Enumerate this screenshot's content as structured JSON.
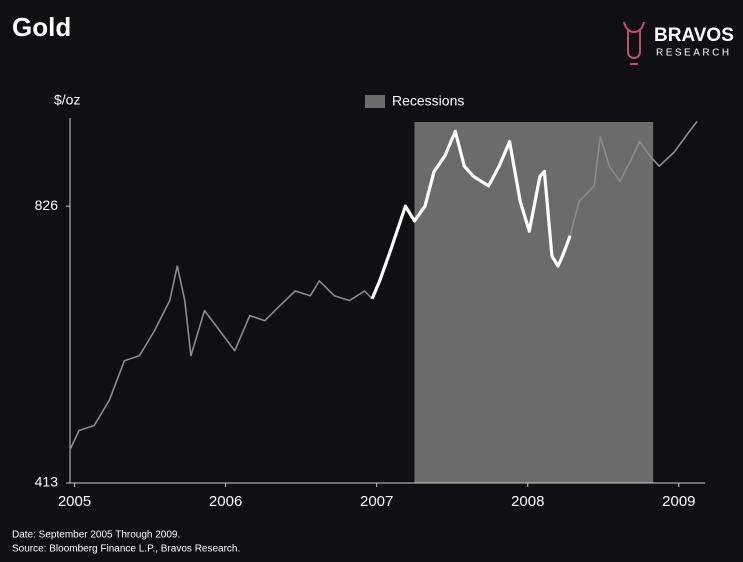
{
  "chart_data": {
    "type": "line",
    "title": "Gold",
    "brand": "BRAVOS",
    "brand_subtitle": "RESEARCH",
    "y_label": "$/oz",
    "footnotes": [
      "Date: September 2005 Through 2009.",
      "Source: Bloomberg Finance L.P., Bravos Research."
    ],
    "log_scale_y": true,
    "xlim": [
      2004.97,
      2009.14
    ],
    "xticks": [
      2005,
      2006,
      2007,
      2008,
      2009
    ],
    "ylim": [
      413,
      1030
    ],
    "yticks": [
      413,
      826
    ],
    "shaded_regions": [
      {
        "label": "Recessions",
        "start": 2007.25,
        "end": 2008.83,
        "color": "#6b6b6b"
      }
    ],
    "x": [
      2004.97,
      2005.03,
      2005.13,
      2005.23,
      2005.33,
      2005.43,
      2005.53,
      2005.63,
      2005.68,
      2005.73,
      2005.77,
      2005.86,
      2005.96,
      2006.06,
      2006.16,
      2006.26,
      2006.36,
      2006.46,
      2006.56,
      2006.62,
      2006.72,
      2006.82,
      2006.92,
      2006.97,
      2007.02,
      2007.09,
      2007.19,
      2007.25,
      2007.32,
      2007.38,
      2007.45,
      2007.52,
      2007.58,
      2007.64,
      2007.74,
      2007.81,
      2007.88,
      2007.95,
      2008.01,
      2008.08,
      2008.11,
      2008.16,
      2008.2,
      2008.23,
      2008.28,
      2008.34,
      2008.44,
      2008.48,
      2008.54,
      2008.61,
      2008.68,
      2008.74,
      2008.81,
      2008.87,
      2008.97,
      2009.07,
      2009.12
    ],
    "series": [
      {
        "color": "#8c8c8c",
        "width": 1.6,
        "values": [
          449,
          471,
          477,
          508,
          561,
          568,
          605,
          652,
          711,
          652,
          568,
          636,
          605,
          575,
          628,
          620,
          644,
          668,
          660,
          685,
          660,
          652,
          668,
          655,
          null,
          null,
          null,
          null,
          null,
          null,
          null,
          null,
          null,
          null,
          null,
          null,
          null,
          null,
          null,
          null,
          null,
          null,
          null,
          null,
          767,
          836,
          869,
          983,
          913,
          879,
          925,
          971,
          936,
          913,
          946,
          996,
          1021
        ]
      },
      {
        "color": "#ffffff",
        "width": 3.2,
        "values": [
          null,
          null,
          null,
          null,
          null,
          null,
          null,
          null,
          null,
          null,
          null,
          null,
          null,
          null,
          null,
          null,
          null,
          null,
          null,
          null,
          null,
          null,
          null,
          655,
          685,
          738,
          826,
          796,
          826,
          901,
          936,
          996,
          913,
          890,
          869,
          913,
          971,
          836,
          776,
          890,
          901,
          729,
          711,
          729,
          767,
          null,
          null,
          null,
          null,
          null,
          null,
          null,
          null,
          null,
          null,
          null,
          null
        ]
      }
    ]
  }
}
